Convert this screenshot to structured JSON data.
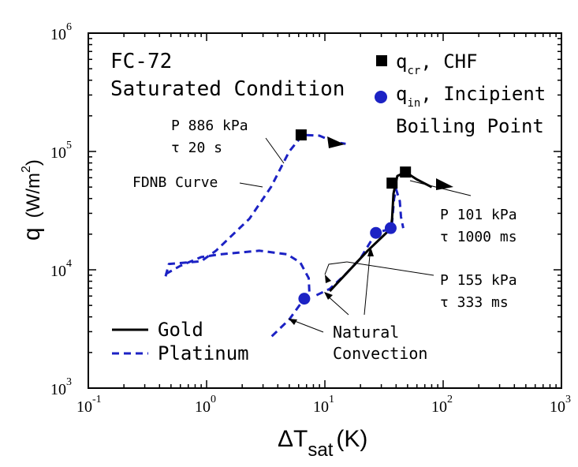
{
  "chart_data": {
    "type": "line",
    "x_scale": "log",
    "y_scale": "log",
    "xlim": [
      0.1,
      1000
    ],
    "ylim": [
      1000,
      1000000
    ],
    "xlabel_main": "ΔT",
    "xlabel_sub": "sat",
    "xlabel_unit": "(K)",
    "ylabel_main": "q",
    "ylabel_unit_a": "(W/m",
    "ylabel_unit_sup": "2",
    "ylabel_unit_b": ")",
    "x_ticks": [
      {
        "base": "10",
        "exp": "-1",
        "value": 0.1
      },
      {
        "base": "10",
        "exp": "0",
        "value": 1
      },
      {
        "base": "10",
        "exp": "1",
        "value": 10
      },
      {
        "base": "10",
        "exp": "2",
        "value": 100
      },
      {
        "base": "10",
        "exp": "3",
        "value": 1000
      }
    ],
    "y_ticks": [
      {
        "base": "10",
        "exp": "3",
        "value": 1000
      },
      {
        "base": "10",
        "exp": "4",
        "value": 10000
      },
      {
        "base": "10",
        "exp": "5",
        "value": 100000
      },
      {
        "base": "10",
        "exp": "6",
        "value": 1000000
      }
    ],
    "annotations": {
      "title_line1": "FC-72",
      "title_line2": "Saturated Condition",
      "p886": "P 886 kPa",
      "tau20": "τ 20 s",
      "fdnb": "FDNB Curve",
      "p101": "P 101 kPa",
      "tau1000": "τ 1000 ms",
      "p155": "P 155 kPa",
      "tau333": "τ 333 ms",
      "natural1": "Natural",
      "natural2": "Convection"
    },
    "marker_legend": {
      "chf_q": "q",
      "chf_sub": "cr",
      "chf_text": ", CHF",
      "inc_q": "q",
      "inc_sub": "in",
      "inc_text": ", Incipient",
      "inc_text2": "Boiling Point"
    },
    "line_legend": [
      {
        "label": "Gold",
        "color": "#000000",
        "style": "solid"
      },
      {
        "label": "Platinum",
        "color": "#1c22c4",
        "style": "dashed"
      }
    ],
    "series": [
      {
        "name": "Platinum",
        "style": "dashed",
        "color": "#1c22c4",
        "points": [
          [
            0.45,
            8800
          ],
          [
            0.48,
            11200
          ],
          [
            0.9,
            11800
          ],
          [
            1.2,
            14500
          ],
          [
            2.3,
            27000
          ],
          [
            3.5,
            50000
          ],
          [
            5.0,
            100000
          ],
          [
            6.5,
            138000
          ],
          [
            9.0,
            136000
          ],
          [
            12.0,
            120000
          ],
          [
            15.0,
            116000
          ]
        ]
      },
      {
        "name": "Platinum",
        "style": "dashed",
        "color": "#1c22c4",
        "points": [
          [
            0.45,
            9200
          ],
          [
            0.6,
            10800
          ],
          [
            0.9,
            12800
          ],
          [
            1.3,
            13500
          ],
          [
            2.8,
            14500
          ],
          [
            4.8,
            13500
          ],
          [
            6.2,
            11500
          ],
          [
            7.3,
            8500
          ],
          [
            7.4,
            6300
          ],
          [
            6.7,
            5700
          ],
          [
            5.0,
            3800
          ],
          [
            3.5,
            2700
          ]
        ]
      },
      {
        "name": "Platinum",
        "style": "dashed",
        "color": "#1c22c4",
        "points": [
          [
            8.5,
            6100
          ],
          [
            11.0,
            6900
          ],
          [
            15.0,
            9200
          ],
          [
            20.0,
            12500
          ],
          [
            27.0,
            20500
          ],
          [
            35.0,
            22000
          ],
          [
            37.0,
            25000
          ],
          [
            38.5,
            40000
          ],
          [
            40.0,
            48000
          ],
          [
            43.0,
            38000
          ],
          [
            44.0,
            28000
          ],
          [
            46.0,
            22500
          ]
        ]
      },
      {
        "name": "Gold",
        "style": "solid",
        "color": "#000000",
        "points": [
          [
            11.0,
            6600
          ],
          [
            17.0,
            10500
          ],
          [
            23.0,
            14500
          ],
          [
            36.0,
            22200
          ],
          [
            37.0,
            27000
          ],
          [
            38.0,
            44000
          ],
          [
            41.0,
            62000
          ],
          [
            48.0,
            67000
          ],
          [
            60.0,
            58000
          ],
          [
            80.0,
            50000
          ]
        ]
      }
    ],
    "chf_points": [
      [
        6.3,
        138000
      ],
      [
        37.0,
        54000
      ],
      [
        48.0,
        67000
      ]
    ],
    "incipient_points": [
      [
        6.7,
        5700
      ],
      [
        27.0,
        20500
      ],
      [
        36.0,
        22500
      ]
    ]
  }
}
